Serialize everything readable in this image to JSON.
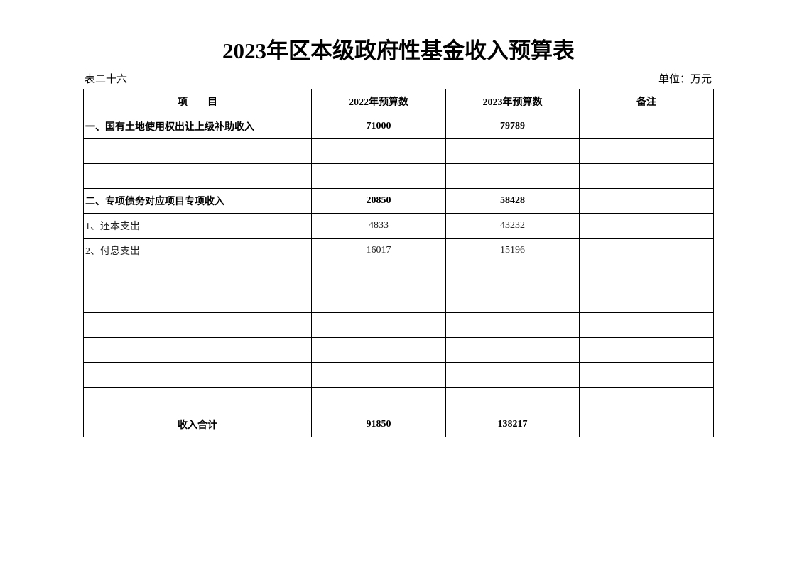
{
  "title": "2023年区本级政府性基金收入预算表",
  "table_no": "表二十六",
  "unit": "单位：万元",
  "columns": [
    "项　　目",
    "2022年预算数",
    "2023年预算数",
    "备注"
  ],
  "rows": [
    {
      "item": "一、国有土地使用权出让上级补助收入",
      "y2022": "71000",
      "y2023": "79789",
      "note": "",
      "bold": true
    },
    {
      "item": "",
      "y2022": "",
      "y2023": "",
      "note": ""
    },
    {
      "item": "",
      "y2022": "",
      "y2023": "",
      "note": ""
    },
    {
      "item": "二、专项债务对应项目专项收入",
      "y2022": "20850",
      "y2023": "58428",
      "note": "",
      "bold": true
    },
    {
      "item": "1、还本支出",
      "y2022": "4833",
      "y2023": "43232",
      "note": ""
    },
    {
      "item": "2、付息支出",
      "y2022": "16017",
      "y2023": "15196",
      "note": ""
    },
    {
      "item": "",
      "y2022": "",
      "y2023": "",
      "note": ""
    },
    {
      "item": "",
      "y2022": "",
      "y2023": "",
      "note": ""
    },
    {
      "item": "",
      "y2022": "",
      "y2023": "",
      "note": ""
    },
    {
      "item": "",
      "y2022": "",
      "y2023": "",
      "note": ""
    },
    {
      "item": "",
      "y2022": "",
      "y2023": "",
      "note": ""
    },
    {
      "item": "",
      "y2022": "",
      "y2023": "",
      "note": ""
    }
  ],
  "total": {
    "item": "收入合计",
    "y2022": "91850",
    "y2023": "138217",
    "note": ""
  }
}
